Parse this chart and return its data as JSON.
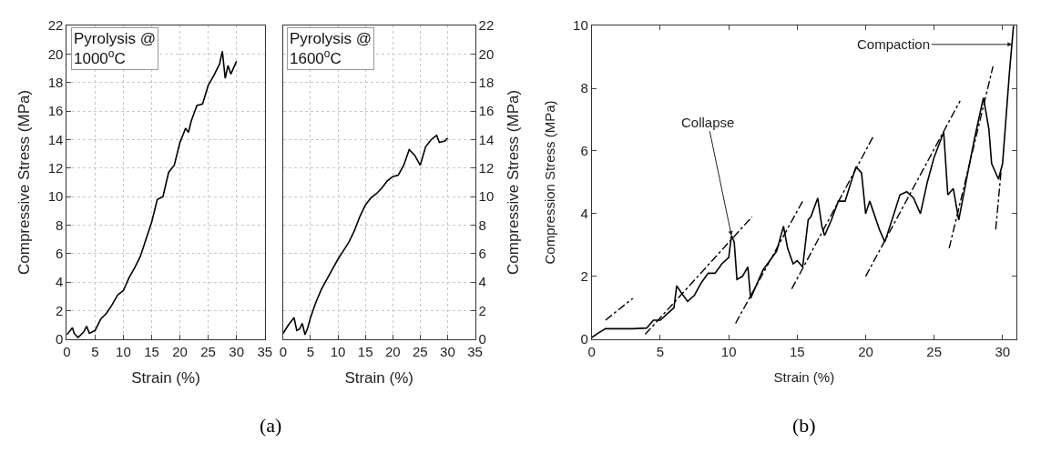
{
  "chart_data": [
    {
      "type": "line",
      "xlabel": "Strain (%)",
      "ylabel": "Compressive Stress (MPa)",
      "xlim": [
        0,
        35
      ],
      "xticks": [
        0,
        5,
        10,
        15,
        20,
        25,
        30,
        35
      ],
      "ylim": [
        0,
        22
      ],
      "yticks": [
        0,
        2,
        4,
        6,
        8,
        10,
        12,
        14,
        16,
        18,
        20,
        22
      ],
      "grid": true,
      "line_style": "solid",
      "annotations": [
        "Pyrolysis @\n1000$^{o}$C",
        "(a)"
      ],
      "series": [
        {
          "color": "#000000",
          "x": [
            0,
            1,
            1.3,
            2,
            3,
            3.5,
            4,
            5,
            6,
            7,
            8,
            9,
            10,
            11,
            12,
            13,
            14,
            15,
            16,
            17,
            18,
            19,
            20,
            21,
            21.5,
            22,
            23,
            24,
            25,
            26,
            27,
            27.5,
            28,
            28.5,
            29,
            30
          ],
          "values": [
            0.3,
            0.8,
            0.4,
            0.1,
            0.5,
            0.9,
            0.4,
            0.6,
            1.4,
            1.8,
            2.4,
            3.1,
            3.4,
            4.3,
            5.0,
            5.8,
            7.0,
            8.2,
            9.8,
            10.0,
            11.7,
            12.2,
            13.8,
            14.8,
            14.5,
            15.3,
            16.4,
            16.5,
            17.8,
            18.5,
            19.3,
            20.2,
            18.3,
            19.2,
            18.6,
            19.5
          ]
        }
      ]
    },
    {
      "type": "line",
      "xlabel": "Strain (%)",
      "y2label": "Compressive Stress (MPa)",
      "xlim": [
        0,
        35
      ],
      "xticks": [
        0,
        5,
        10,
        15,
        20,
        25,
        30,
        35
      ],
      "y2lim": [
        0,
        22
      ],
      "y2ticks": [
        0,
        2,
        4,
        6,
        8,
        10,
        12,
        14,
        16,
        18,
        20,
        22
      ],
      "grid": true,
      "line_style": "solid",
      "annotations": [
        "Pyrolysis @\n1600$^{o}$C"
      ],
      "series": [
        {
          "color": "#000000",
          "axis": "y2",
          "x": [
            0,
            1,
            2,
            2.5,
            3,
            3.5,
            4,
            4.5,
            5,
            6,
            7,
            8,
            9,
            10,
            11,
            12,
            13,
            14,
            15,
            16,
            17,
            18,
            19,
            20,
            21,
            22,
            23,
            24,
            25,
            26,
            27,
            28,
            28.5,
            29.5,
            30
          ],
          "values": [
            0.4,
            1.0,
            1.5,
            0.6,
            0.7,
            1.1,
            0.3,
            0.8,
            1.5,
            2.6,
            3.5,
            4.2,
            4.9,
            5.6,
            6.2,
            6.8,
            7.6,
            8.6,
            9.4,
            9.9,
            10.2,
            10.6,
            11.1,
            11.4,
            11.5,
            12.2,
            13.3,
            12.9,
            12.2,
            13.5,
            14.0,
            14.3,
            13.8,
            13.9,
            14.1
          ]
        }
      ]
    },
    {
      "type": "line",
      "xlabel": "Strain (%)",
      "ylabel": "Compression Stress (MPa)",
      "xlim": [
        0,
        31
      ],
      "xticks": [
        0,
        5,
        10,
        15,
        20,
        25,
        30
      ],
      "ylim": [
        0,
        10
      ],
      "yticks": [
        0,
        2,
        4,
        6,
        8,
        10
      ],
      "line_style": "solid",
      "annotations": [
        {
          "text": "Collapse",
          "x": 10.2,
          "y": 3.3
        },
        {
          "text": "Compaction",
          "x": 30.7,
          "y": 9.4
        },
        "(b)"
      ],
      "series": [
        {
          "color": "#000000",
          "x": [
            0,
            0.5,
            1,
            2,
            3,
            4,
            4.5,
            5,
            5.5,
            6,
            6.2,
            6.5,
            7,
            7.5,
            8,
            8.5,
            9,
            9.5,
            10,
            10.2,
            10.4,
            10.6,
            11,
            11.4,
            11.6,
            12,
            12.5,
            13,
            13.5,
            14,
            14.3,
            14.7,
            15,
            15.4,
            15.8,
            16,
            16.5,
            16.8,
            17,
            17.5,
            18,
            18.5,
            19,
            19.3,
            19.7,
            20,
            20.3,
            21,
            21.4,
            22,
            22.5,
            23,
            23.5,
            24,
            24.5,
            25,
            25.7,
            26,
            26.4,
            26.8,
            27.5,
            28,
            28.6,
            29,
            29.2,
            29.7,
            30,
            30.5,
            30.8
          ],
          "values": [
            0.05,
            0.2,
            0.33,
            0.33,
            0.33,
            0.35,
            0.6,
            0.6,
            0.8,
            1.0,
            1.7,
            1.5,
            1.2,
            1.4,
            1.8,
            2.1,
            2.1,
            2.4,
            2.6,
            3.3,
            3.1,
            1.9,
            2.0,
            2.3,
            1.3,
            1.7,
            2.2,
            2.5,
            2.8,
            3.6,
            2.9,
            2.4,
            2.5,
            2.3,
            3.8,
            3.9,
            4.5,
            3.6,
            3.3,
            3.8,
            4.4,
            4.4,
            5.1,
            5.5,
            5.3,
            4.0,
            4.4,
            3.5,
            3.1,
            3.9,
            4.6,
            4.7,
            4.5,
            4.0,
            5.0,
            5.8,
            6.6,
            4.6,
            4.8,
            3.8,
            5.4,
            6.5,
            7.7,
            6.7,
            5.6,
            5.1,
            5.6,
            8.5,
            10
          ]
        },
        {
          "color": "#000000",
          "line_style": "dashdot",
          "x": [
            1,
            3
          ],
          "values": [
            0.6,
            1.3
          ]
        },
        {
          "color": "#000000",
          "line_style": "dashdot",
          "x": [
            3.9,
            11.7
          ],
          "values": [
            0.15,
            3.9
          ]
        },
        {
          "color": "#000000",
          "line_style": "dashdot",
          "x": [
            10.5,
            15.4
          ],
          "values": [
            0.5,
            4.4
          ]
        },
        {
          "color": "#000000",
          "line_style": "dashdot",
          "x": [
            14.6,
            20.6
          ],
          "values": [
            1.6,
            6.5
          ]
        },
        {
          "color": "#000000",
          "line_style": "dashdot",
          "x": [
            20,
            26.9
          ],
          "values": [
            2.0,
            7.6
          ]
        },
        {
          "color": "#000000",
          "line_style": "dashdot",
          "x": [
            26.1,
            29.3
          ],
          "values": [
            2.9,
            8.7
          ]
        },
        {
          "color": "#000000",
          "line_style": "dashdot",
          "x": [
            29.5,
            29.9
          ],
          "values": [
            3.5,
            5.4
          ]
        }
      ]
    }
  ]
}
